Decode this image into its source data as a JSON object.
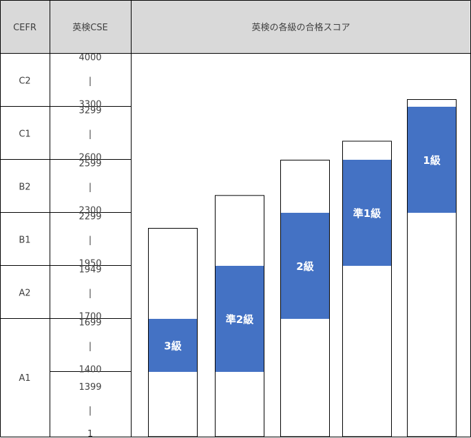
{
  "chart_data": {
    "type": "table",
    "headers": {
      "cefr": "CEFR",
      "cse": "英検CSE",
      "chart": "英検の各級の合格スコア"
    },
    "rows": [
      {
        "cefr": "C2",
        "cse_top": "4000",
        "dash": "|",
        "cse_bottom": "3300"
      },
      {
        "cefr": "C1",
        "cse_top": "3299",
        "dash": "|",
        "cse_bottom": "2600"
      },
      {
        "cefr": "B2",
        "cse_top": "2599",
        "dash": "|",
        "cse_bottom": "2300"
      },
      {
        "cefr": "B1",
        "cse_top": "2299",
        "dash": "|",
        "cse_bottom": "1950"
      },
      {
        "cefr": "A2",
        "cse_top": "1949",
        "dash": "|",
        "cse_bottom": "1700"
      },
      {
        "cefr": "A1",
        "cse_top": "1699",
        "dash": "|",
        "cse_bottom": "1400"
      },
      {
        "cefr": "",
        "cse_top": "1399",
        "dash": "|",
        "cse_bottom": "1"
      }
    ],
    "series": [
      {
        "name": "3級",
        "pass_range": [
          1400,
          1699
        ],
        "max": 2199
      },
      {
        "name": "準2級",
        "pass_range": [
          1400,
          1949
        ],
        "max": 2399
      },
      {
        "name": "2級",
        "pass_range": [
          1700,
          2299
        ],
        "max": 2599
      },
      {
        "name": "準1級",
        "pass_range": [
          1950,
          2599
        ],
        "max": 2849
      },
      {
        "name": "1級",
        "pass_range": [
          2300,
          3299
        ],
        "max": 3399
      }
    ]
  },
  "colors": {
    "header_bg": "#d9d9d9",
    "grid_line": "#000000",
    "bar_fill": "#4472c4",
    "bar_label": "#ffffff",
    "text": "#404040"
  }
}
